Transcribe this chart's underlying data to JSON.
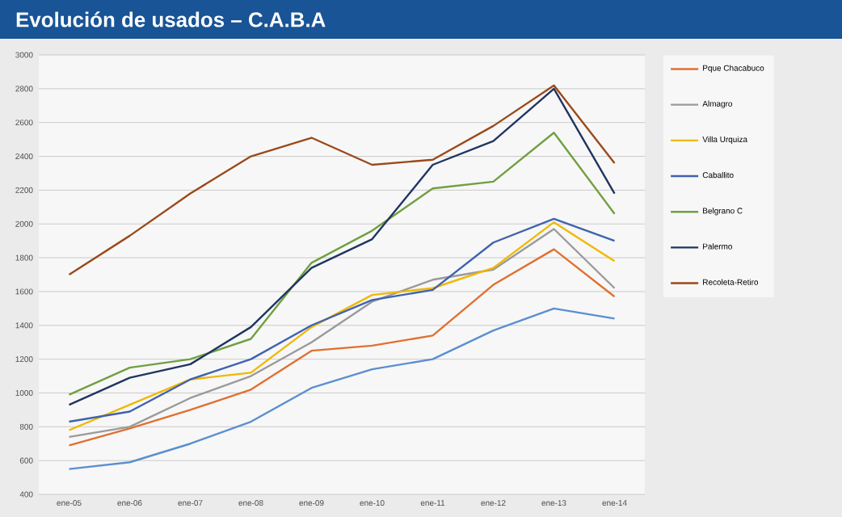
{
  "chart_data": {
    "type": "line",
    "title": "Evolución de usados – C.A.B.A",
    "categories": [
      "ene-05",
      "ene-06",
      "ene-07",
      "ene-08",
      "ene-09",
      "ene-10",
      "ene-11",
      "ene-12",
      "ene-13",
      "ene-14"
    ],
    "series": [
      {
        "name": "Pque Chacabuco",
        "color": "#e07030",
        "values": [
          690,
          790,
          900,
          1020,
          1250,
          1280,
          1340,
          1640,
          1850,
          1570
        ]
      },
      {
        "name": "Almagro",
        "color": "#9a9a9a",
        "values": [
          740,
          800,
          970,
          1100,
          1300,
          1540,
          1670,
          1730,
          1970,
          1620
        ]
      },
      {
        "name": "Villa Urquiza",
        "color": "#f0b800",
        "values": [
          780,
          930,
          1080,
          1120,
          1390,
          1580,
          1620,
          1740,
          2010,
          1780
        ]
      },
      {
        "name": "Caballito",
        "color": "#3f62b0",
        "values": [
          830,
          890,
          1080,
          1200,
          1400,
          1550,
          1610,
          1890,
          2030,
          1900
        ]
      },
      {
        "name": "Belgrano C",
        "color": "#70a040",
        "values": [
          990,
          1150,
          1200,
          1320,
          1770,
          1960,
          2210,
          2250,
          2540,
          2060
        ]
      },
      {
        "name": "Palermo",
        "color": "#1f3560",
        "values": [
          930,
          1090,
          1170,
          1390,
          1740,
          1910,
          2350,
          2490,
          2800,
          2180
        ]
      },
      {
        "name": "Recoleta-Retiro",
        "color": "#9a4a1a",
        "values": [
          1700,
          1930,
          2180,
          2400,
          2510,
          2350,
          2380,
          2580,
          2820,
          2360
        ]
      },
      {
        "color": "#5b8fcf",
        "values": [
          550,
          590,
          700,
          830,
          1030,
          1140,
          1200,
          1370,
          1500,
          1440
        ]
      }
    ],
    "ylim": [
      400,
      3000
    ],
    "yticks": [
      400,
      600,
      800,
      1000,
      1200,
      1400,
      1600,
      1800,
      2000,
      2200,
      2400,
      2600,
      2800,
      3000
    ],
    "grid": "y",
    "legend": "right",
    "marker": "none",
    "line_style": "solid"
  }
}
